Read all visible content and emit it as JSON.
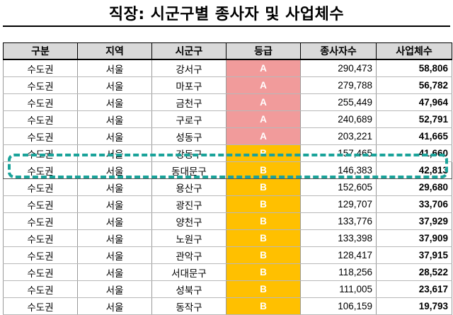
{
  "title": "직장: 시군구별 종사자 및 사업체수",
  "columns": [
    "구분",
    "지역",
    "시군구",
    "등급",
    "종사자수",
    "사업체수"
  ],
  "rows": [
    {
      "region": "수도권",
      "area": "서울",
      "district": "강서구",
      "grade": "A",
      "workers": "290,473",
      "businesses": "58,806"
    },
    {
      "region": "수도권",
      "area": "서울",
      "district": "마포구",
      "grade": "A",
      "workers": "279,788",
      "businesses": "56,782"
    },
    {
      "region": "수도권",
      "area": "서울",
      "district": "금천구",
      "grade": "A",
      "workers": "255,449",
      "businesses": "47,964"
    },
    {
      "region": "수도권",
      "area": "서울",
      "district": "구로구",
      "grade": "A",
      "workers": "240,689",
      "businesses": "52,791"
    },
    {
      "region": "수도권",
      "area": "서울",
      "district": "성동구",
      "grade": "A",
      "workers": "203,221",
      "businesses": "41,665"
    },
    {
      "region": "수도권",
      "area": "서울",
      "district": "강동구",
      "grade": "B",
      "workers": "157,465",
      "businesses": "41,660"
    },
    {
      "region": "수도권",
      "area": "서울",
      "district": "동대문구",
      "grade": "B",
      "workers": "146,383",
      "businesses": "42,813"
    },
    {
      "region": "수도권",
      "area": "서울",
      "district": "용산구",
      "grade": "B",
      "workers": "152,605",
      "businesses": "29,680"
    },
    {
      "region": "수도권",
      "area": "서울",
      "district": "광진구",
      "grade": "B",
      "workers": "129,707",
      "businesses": "33,706"
    },
    {
      "region": "수도권",
      "area": "서울",
      "district": "양천구",
      "grade": "B",
      "workers": "133,776",
      "businesses": "37,929"
    },
    {
      "region": "수도권",
      "area": "서울",
      "district": "노원구",
      "grade": "B",
      "workers": "133,398",
      "businesses": "37,909"
    },
    {
      "region": "수도권",
      "area": "서울",
      "district": "관악구",
      "grade": "B",
      "workers": "128,417",
      "businesses": "37,915"
    },
    {
      "region": "수도권",
      "area": "서울",
      "district": "서대문구",
      "grade": "B",
      "workers": "118,256",
      "businesses": "28,522"
    },
    {
      "region": "수도권",
      "area": "서울",
      "district": "성북구",
      "grade": "B",
      "workers": "111,005",
      "businesses": "23,617"
    },
    {
      "region": "수도권",
      "area": "서울",
      "district": "동작구",
      "grade": "B",
      "workers": "106,159",
      "businesses": "19,793"
    }
  ],
  "highlighted_row": 6,
  "colors": {
    "grade_A": "#f19b9b",
    "grade_B": "#ffc000",
    "highlight": "#1aa39a"
  }
}
